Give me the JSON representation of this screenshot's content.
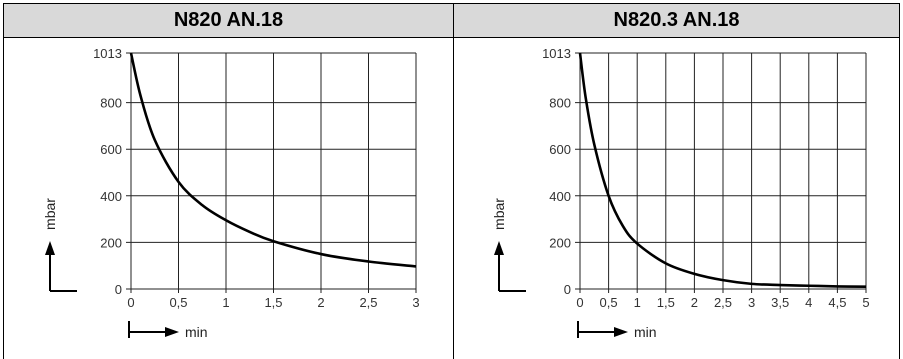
{
  "headers": [
    "N820 AN.18",
    "N820.3 AN.18"
  ],
  "chart_data": [
    {
      "type": "line",
      "title": "N820 AN.18",
      "xlabel": "min",
      "ylabel": "mbar",
      "xlim": [
        0,
        3
      ],
      "ylim": [
        0,
        1013
      ],
      "xticks": [
        "0",
        "0,5",
        "1",
        "1,5",
        "2",
        "2,5",
        "3"
      ],
      "yticks": [
        "0",
        "200",
        "400",
        "600",
        "800",
        "1013"
      ],
      "grid": true,
      "series": [
        {
          "x": [
            0,
            0.1,
            0.25,
            0.5,
            0.75,
            1,
            1.25,
            1.5,
            2,
            2.5,
            3
          ],
          "y": [
            1013,
            830,
            640,
            460,
            360,
            295,
            245,
            205,
            150,
            118,
            97
          ]
        }
      ]
    },
    {
      "type": "line",
      "title": "N820.3 AN.18",
      "xlabel": "min",
      "ylabel": "mbar",
      "xlim": [
        0,
        5
      ],
      "ylim": [
        0,
        1013
      ],
      "xticks": [
        "0",
        "0,5",
        "1",
        "1,5",
        "2",
        "2,5",
        "3",
        "3,5",
        "4",
        "4,5",
        "5"
      ],
      "yticks": [
        "0",
        "200",
        "400",
        "600",
        "800",
        "1013"
      ],
      "grid": true,
      "series": [
        {
          "x": [
            0,
            0.1,
            0.25,
            0.5,
            0.75,
            1,
            1.5,
            2,
            2.5,
            3,
            3.5,
            4,
            4.5,
            5
          ],
          "y": [
            1013,
            820,
            620,
            400,
            270,
            195,
            110,
            65,
            38,
            22,
            17,
            14,
            11,
            10
          ]
        }
      ]
    }
  ]
}
